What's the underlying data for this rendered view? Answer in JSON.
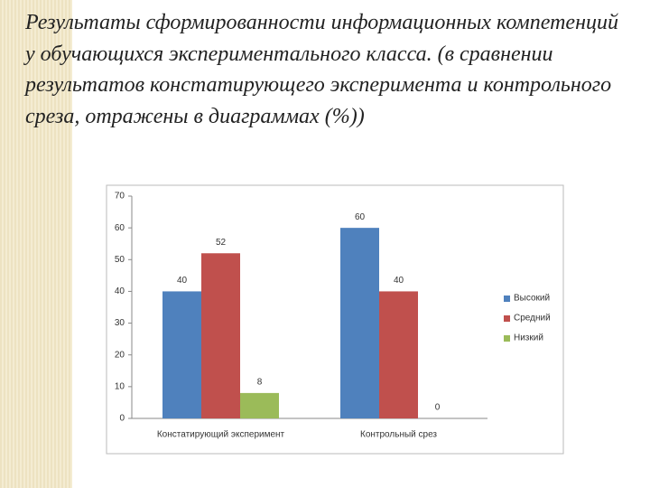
{
  "title": "Результаты сформированности информационных компетенций у обучающихся экспериментального класса. (в  сравнении результатов констатирующего эксперимента и контрольного среза, отражены в диаграммах (%))",
  "chart_data": {
    "type": "bar",
    "categories": [
      "Констатирующий эксперимент",
      "Контрольный срез"
    ],
    "series": [
      {
        "name": "Высокий",
        "color": "#4f81bd",
        "values": [
          40,
          60
        ]
      },
      {
        "name": "Средний",
        "color": "#c0504d",
        "values": [
          52,
          40
        ]
      },
      {
        "name": "Низкий",
        "color": "#9bbb59",
        "values": [
          8,
          0
        ]
      }
    ],
    "ylim": [
      0,
      70
    ],
    "yticks": [
      0,
      10,
      20,
      30,
      40,
      50,
      60,
      70
    ],
    "grid": false,
    "legend": "right"
  }
}
